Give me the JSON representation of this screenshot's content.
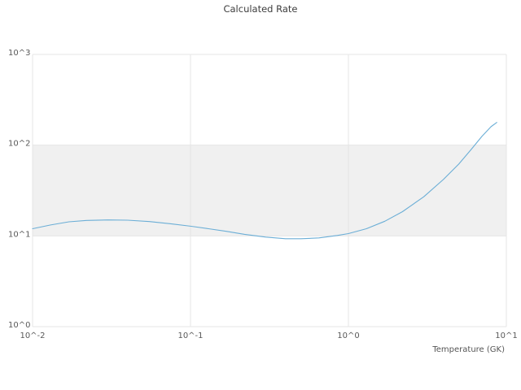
{
  "chart_data": {
    "type": "line",
    "title": "Calculated Rate",
    "xlabel": "Temperature (GK)",
    "ylabel": "",
    "x_scale": "log",
    "y_scale": "log",
    "xlim": [
      0.01,
      10
    ],
    "ylim": [
      1,
      1000
    ],
    "x_ticks": [
      {
        "value": 0.01,
        "label": "10^-2"
      },
      {
        "value": 0.1,
        "label": "10^-1"
      },
      {
        "value": 1,
        "label": "10^0"
      },
      {
        "value": 10,
        "label": "10^1"
      }
    ],
    "y_ticks": [
      {
        "value": 1,
        "label": "10^0"
      },
      {
        "value": 10,
        "label": "10^1"
      },
      {
        "value": 100,
        "label": "10^2"
      },
      {
        "value": 1000,
        "label": "10^3"
      }
    ],
    "grid": true,
    "legend": "none",
    "colors": {
      "line": "#6baed6",
      "grid": "#e5e5e5",
      "band": "#f0f0f0",
      "background": "#ffffff"
    },
    "band": {
      "from": 10,
      "to": 100
    },
    "series": [
      {
        "name": "calculated-rate",
        "x": [
          0.01,
          0.013,
          0.017,
          0.022,
          0.03,
          0.04,
          0.055,
          0.075,
          0.1,
          0.13,
          0.17,
          0.22,
          0.3,
          0.4,
          0.5,
          0.65,
          0.85,
          1.0,
          1.3,
          1.7,
          2.2,
          3.0,
          4.0,
          5.0,
          6.0,
          7.0,
          8.0,
          8.7
        ],
        "y": [
          12.0,
          13.2,
          14.3,
          14.8,
          15.0,
          14.9,
          14.4,
          13.6,
          12.8,
          12.0,
          11.2,
          10.4,
          9.7,
          9.3,
          9.3,
          9.5,
          10.1,
          10.6,
          12.0,
          14.5,
          18.5,
          27.0,
          42.0,
          62.0,
          90.0,
          125.0,
          160.0,
          178.0
        ]
      }
    ]
  }
}
